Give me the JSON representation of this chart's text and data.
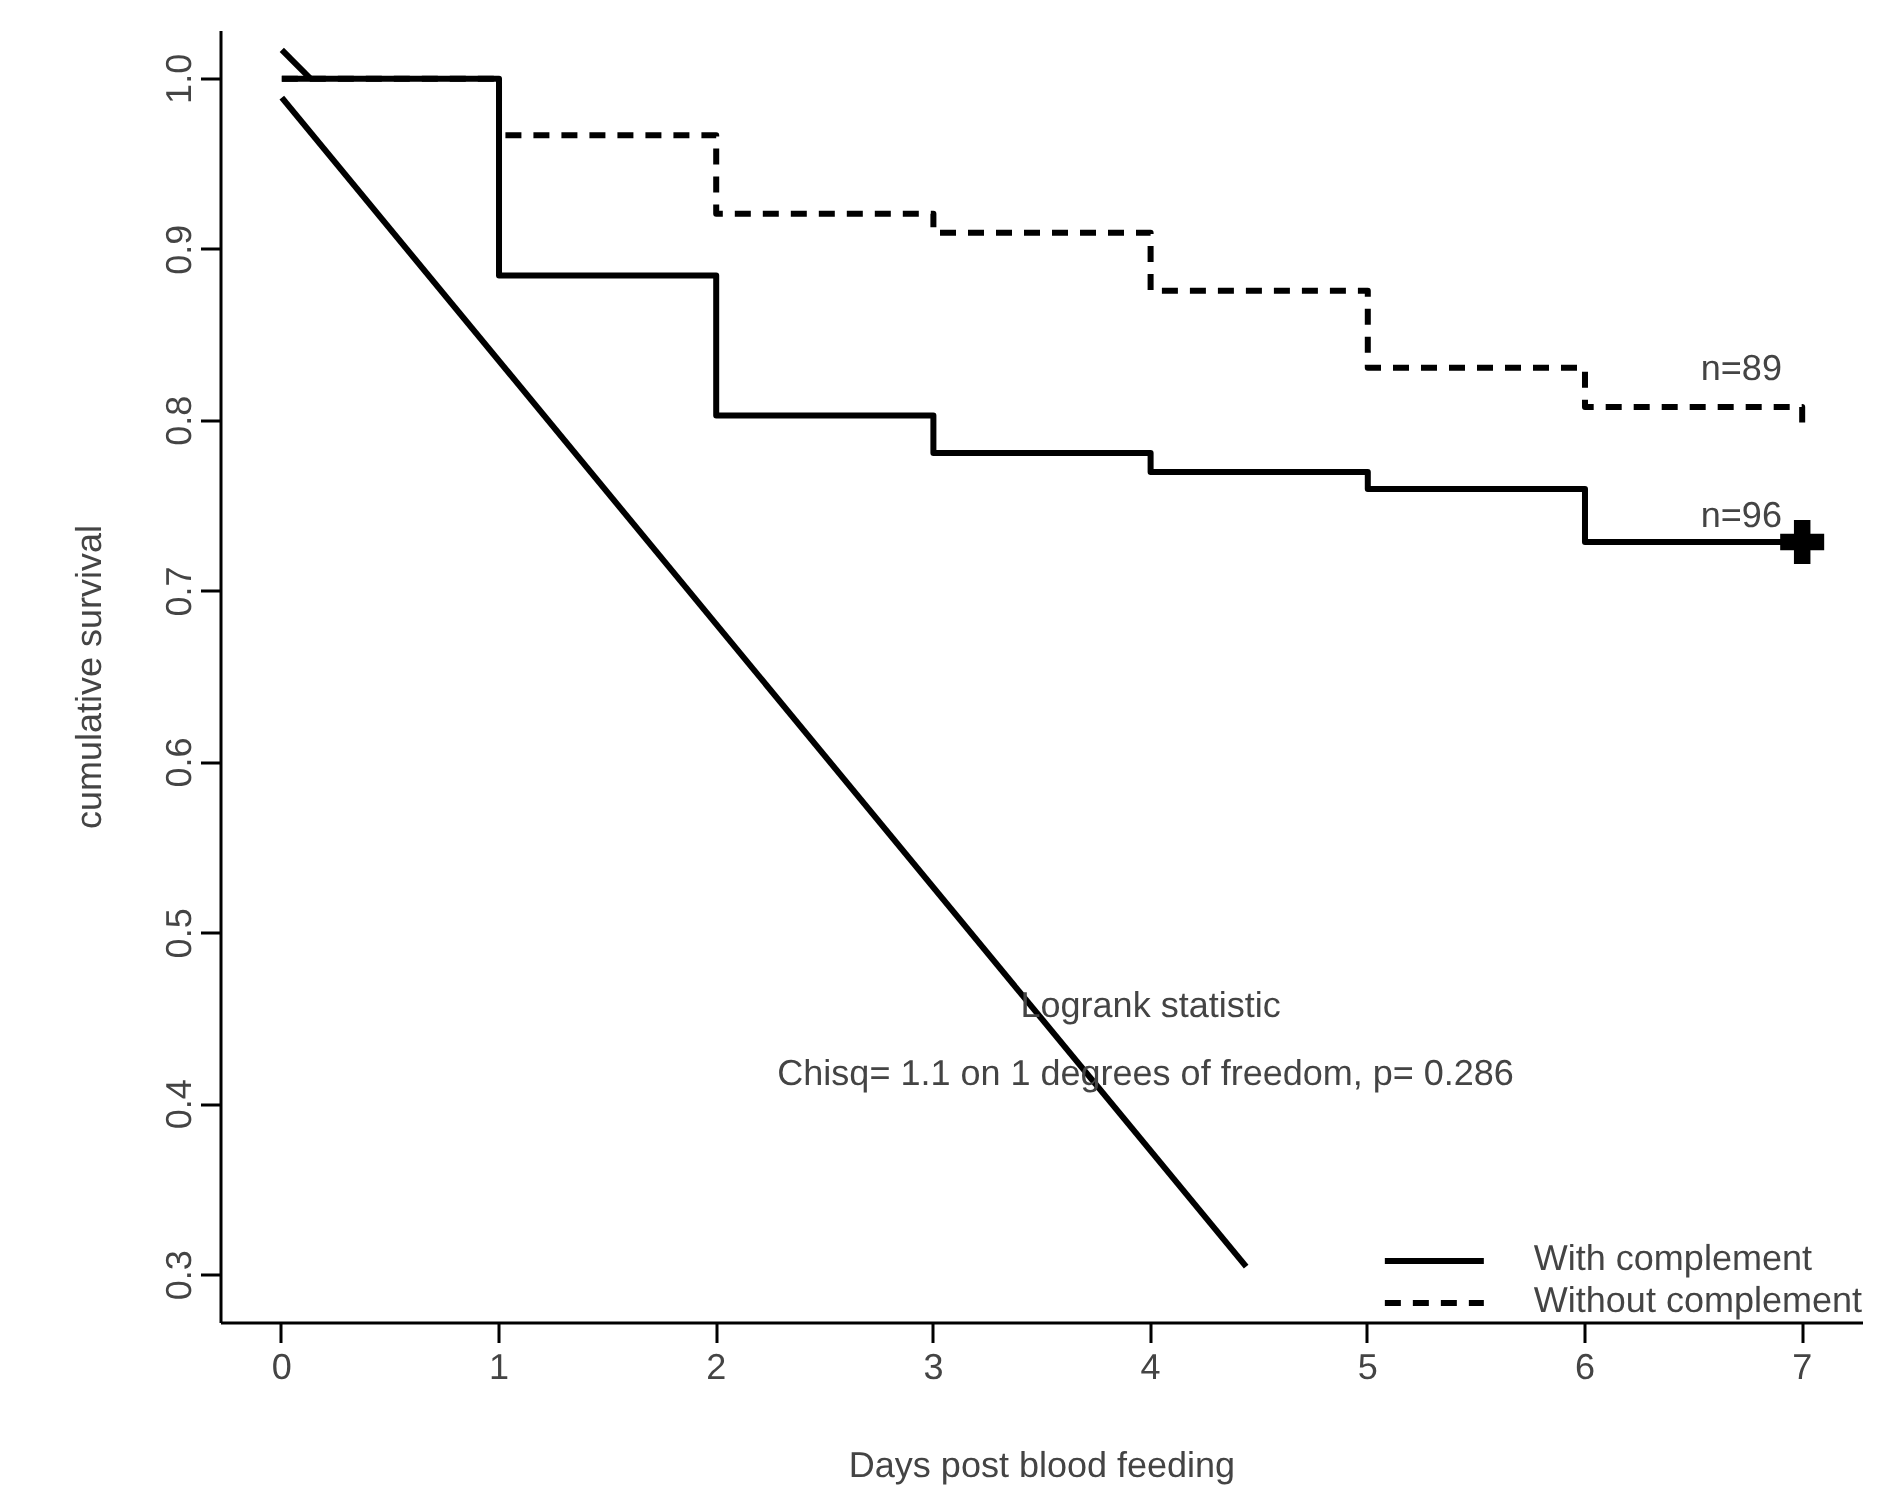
{
  "chart_data": {
    "type": "step",
    "xlabel": "Days post blood feeding",
    "ylabel": "cumulative survival",
    "xlim": [
      -0.28,
      7.28
    ],
    "ylim": [
      0.272,
      1.028
    ],
    "xticks": [
      0,
      1,
      2,
      3,
      4,
      5,
      6,
      7
    ],
    "yticks": [
      0.3,
      0.4,
      0.5,
      0.6,
      0.7,
      0.8,
      0.9,
      {
        "value": 1.0,
        "label": "1.0"
      }
    ],
    "x": [
      0,
      1,
      2,
      3,
      4,
      5,
      6,
      7
    ],
    "series": [
      {
        "name": "With complement",
        "color": "#000000",
        "line_style": "solid",
        "values": [
          1.0,
          0.885,
          0.803,
          0.781,
          0.77,
          0.76,
          0.729,
          0.729
        ]
      },
      {
        "name": "Without complement",
        "color": "#000000",
        "line_style": "dashed",
        "values": [
          1.0,
          0.967,
          0.921,
          0.91,
          0.876,
          0.831,
          0.808,
          0.795
        ]
      },
      {
        "type": "scatter",
        "marker": "cross",
        "color": "#000000",
        "x": [
          7
        ],
        "values": [
          0.729
        ]
      },
      {
        "type": "line",
        "color": "#000000",
        "line_style": "solid",
        "x": [
          0,
          4.44
        ],
        "values": [
          0.989,
          0.305
        ]
      },
      {
        "type": "line",
        "color": "#000000",
        "line_style": "solid",
        "x": [
          0,
          0.133
        ],
        "values": [
          1.017,
          1.0
        ]
      }
    ],
    "annotations": [
      "Logrank statistic",
      "Chisq= 1.1  on 1 degrees of freedom, p= 0.286",
      "n=89",
      "n=96"
    ],
    "legend": "bottom right",
    "grid": false
  }
}
